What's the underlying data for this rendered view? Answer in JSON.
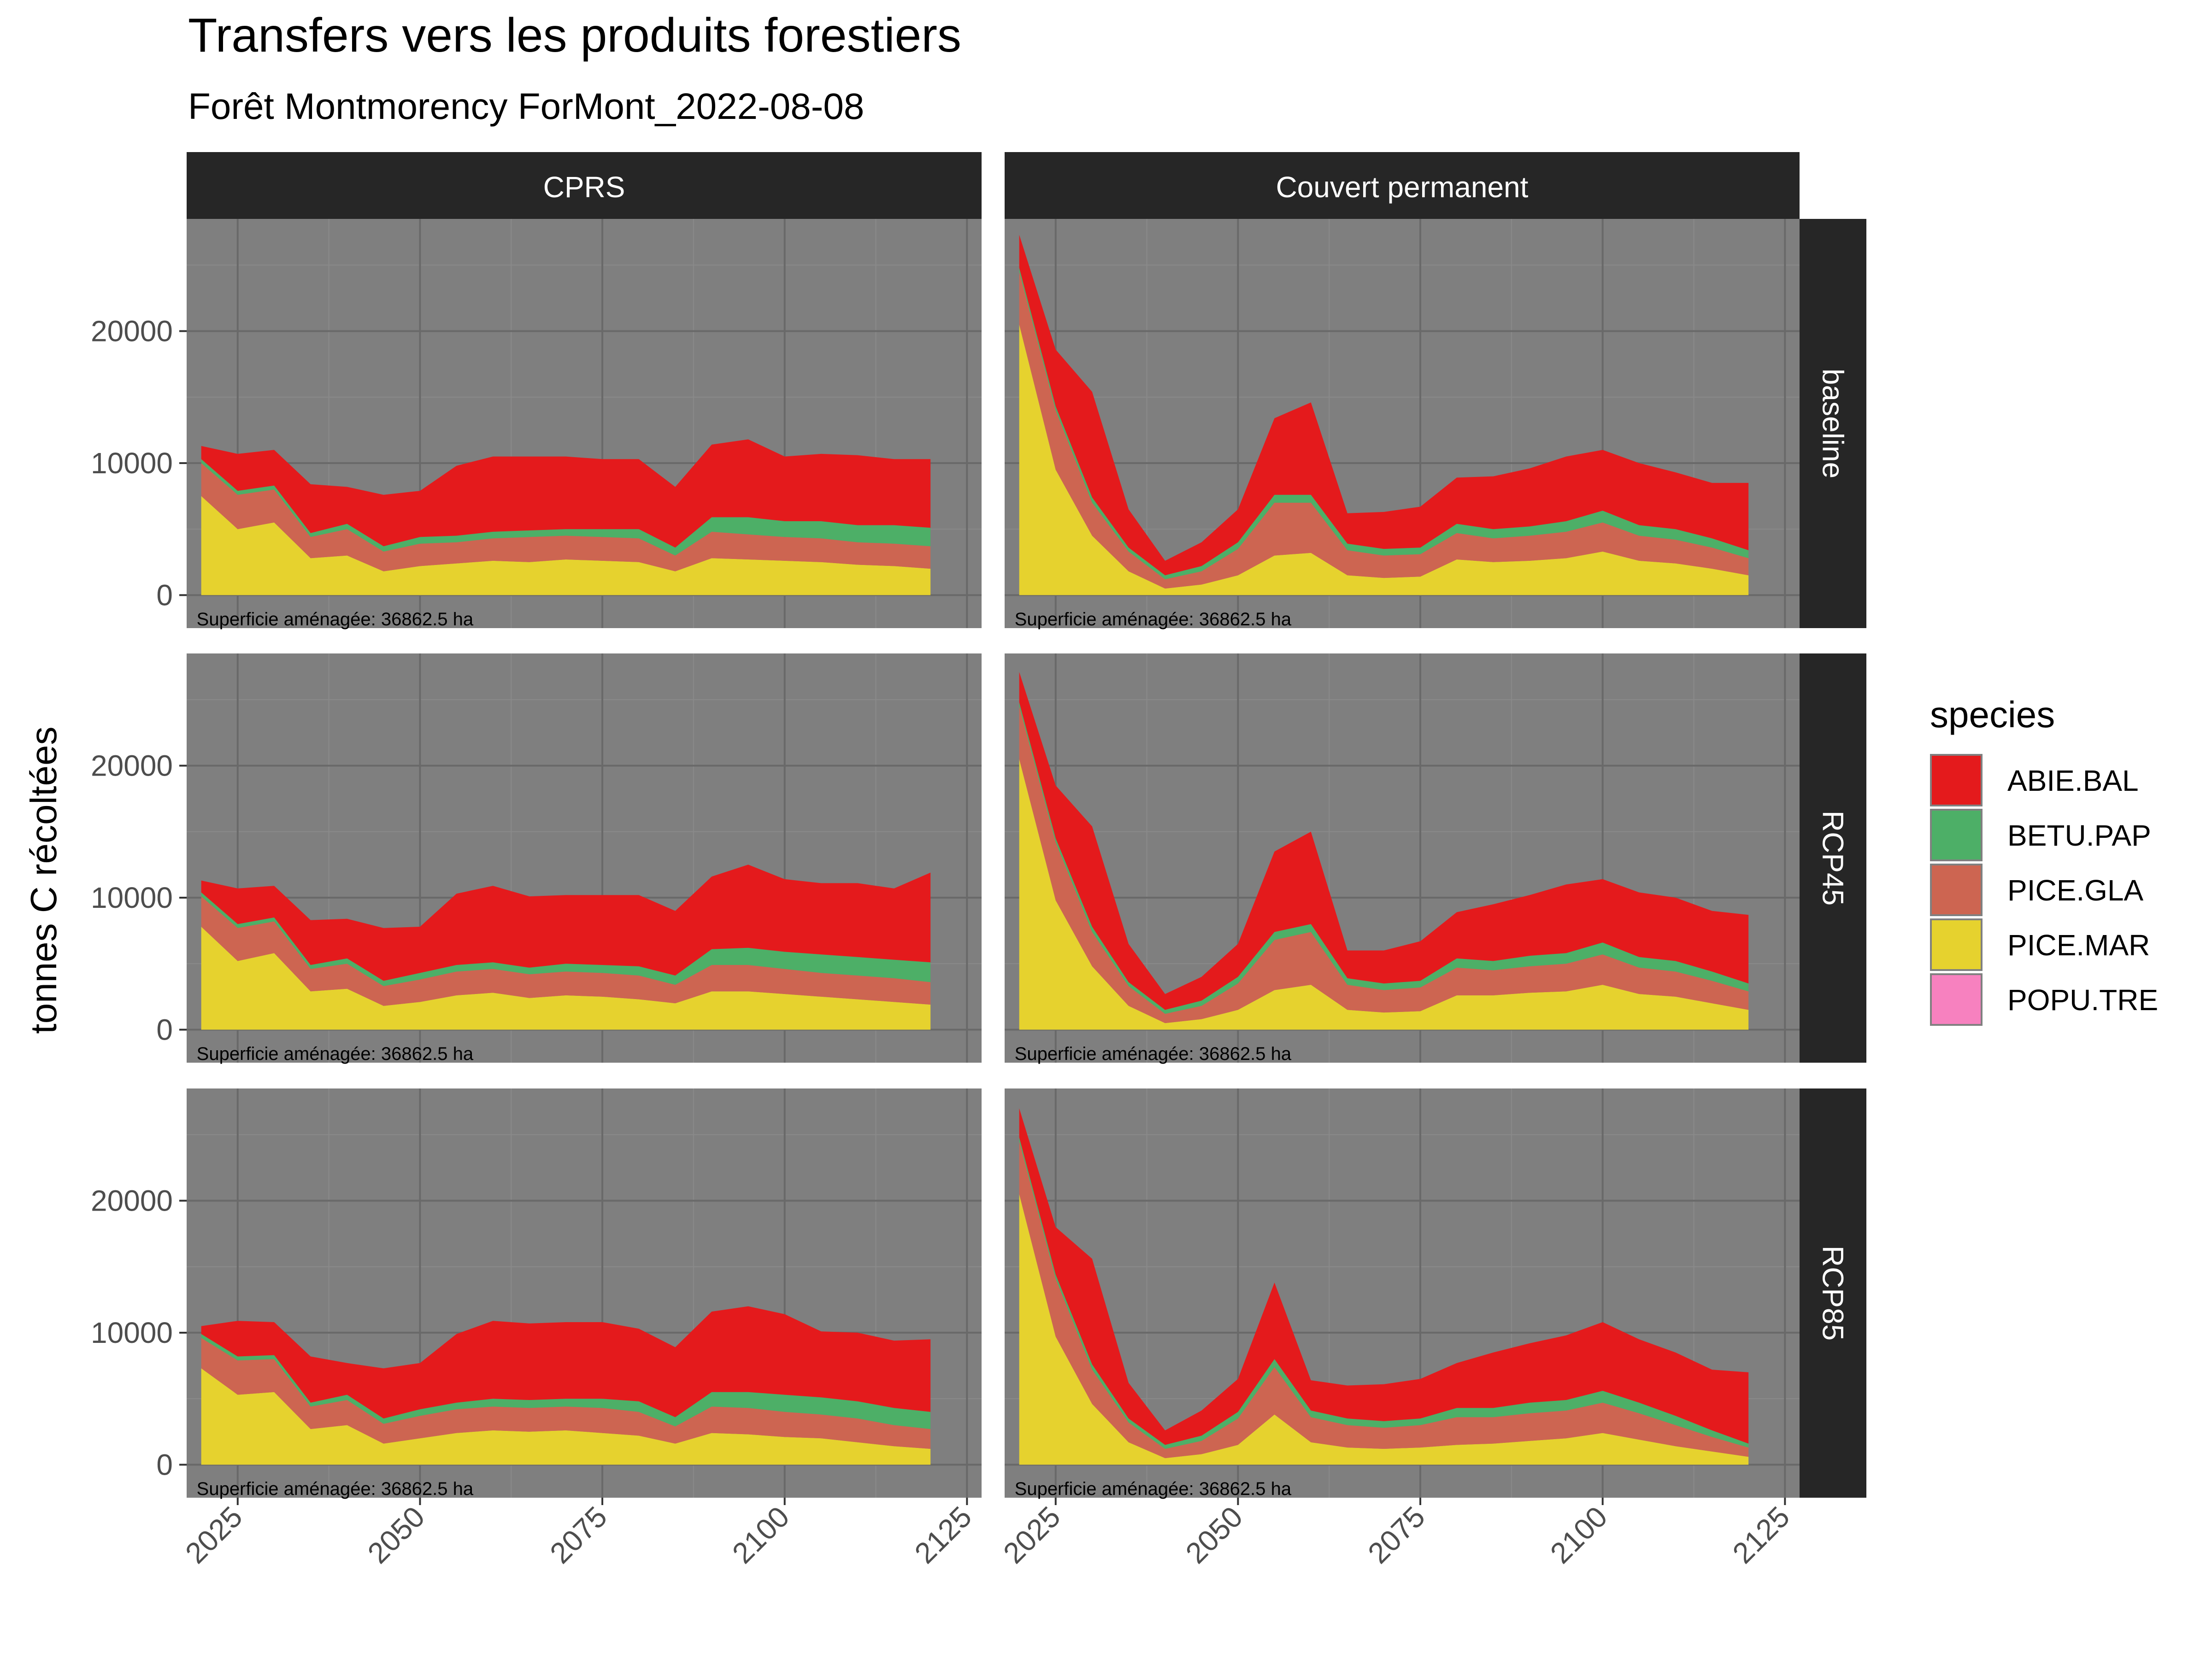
{
  "chart_data": {
    "type": "area",
    "stacked": true,
    "title": "Transfers vers les produits forestiers",
    "subtitle": "Forêt Montmorency ForMont_2022-08-08",
    "ylabel": "tonnes C récoltées",
    "xlabel": "",
    "xlim": [
      2018,
      2127
    ],
    "ylim": [
      -2500,
      28500
    ],
    "x_ticks": [
      2025,
      2050,
      2075,
      2100,
      2125
    ],
    "y_ticks": [
      0,
      10000,
      20000
    ],
    "grid": true,
    "legend": {
      "title": "species",
      "position": "right",
      "entries": [
        {
          "name": "ABIE.BAL",
          "color": "#e41a1c"
        },
        {
          "name": "BETU.PAP",
          "color": "#4daf67"
        },
        {
          "name": "PICE.GLA",
          "color": "#cd6551"
        },
        {
          "name": "PICE.MAR",
          "color": "#e6d22e"
        },
        {
          "name": "POPU.TRE",
          "color": "#f781bf"
        }
      ]
    },
    "columns": [
      "CPRS",
      "Couvert permanent"
    ],
    "rows": [
      "baseline",
      "RCP45",
      "RCP85"
    ],
    "annotation": "Superficie aménagée: 36862.5 ha",
    "panels": [
      {
        "column": "CPRS",
        "row": "baseline",
        "x": [
          2020,
          2025,
          2030,
          2035,
          2040,
          2045,
          2050,
          2055,
          2060,
          2065,
          2070,
          2075,
          2080,
          2085,
          2090,
          2095,
          2100,
          2105,
          2110,
          2115,
          2120
        ],
        "series": [
          {
            "name": "PICE.MAR",
            "values": [
              7500,
              5000,
              5500,
              2800,
              3000,
              1800,
              2200,
              2400,
              2600,
              2500,
              2700,
              2600,
              2500,
              1800,
              2800,
              2700,
              2600,
              2500,
              2300,
              2200,
              2000
            ]
          },
          {
            "name": "PICE.GLA",
            "values": [
              2500,
              2600,
              2500,
              1600,
              2000,
              1500,
              1700,
              1600,
              1700,
              1900,
              1800,
              1800,
              1800,
              1200,
              2000,
              1900,
              1800,
              1800,
              1700,
              1700,
              1700
            ]
          },
          {
            "name": "BETU.PAP",
            "values": [
              300,
              300,
              300,
              300,
              400,
              400,
              500,
              500,
              500,
              500,
              500,
              600,
              700,
              600,
              1100,
              1300,
              1200,
              1300,
              1300,
              1400,
              1400
            ]
          },
          {
            "name": "ABIE.BAL",
            "values": [
              1000,
              2800,
              2700,
              3700,
              2800,
              3900,
              3500,
              5300,
              5700,
              5600,
              5500,
              5300,
              5300,
              4600,
              5500,
              5900,
              4900,
              5100,
              5300,
              5000,
              5200
            ]
          },
          {
            "name": "POPU.TRE",
            "values": [
              0,
              0,
              0,
              0,
              0,
              0,
              0,
              0,
              0,
              0,
              0,
              0,
              0,
              0,
              0,
              0,
              0,
              0,
              0,
              0,
              0
            ]
          }
        ]
      },
      {
        "column": "Couvert permanent",
        "row": "baseline",
        "x": [
          2020,
          2025,
          2030,
          2035,
          2040,
          2045,
          2050,
          2055,
          2060,
          2065,
          2070,
          2075,
          2080,
          2085,
          2090,
          2095,
          2100,
          2105,
          2110,
          2115,
          2120
        ],
        "series": [
          {
            "name": "PICE.MAR",
            "values": [
              20500,
              9500,
              4500,
              1800,
              500,
              800,
              1500,
              3000,
              3200,
              1500,
              1300,
              1400,
              2700,
              2500,
              2600,
              2800,
              3300,
              2600,
              2400,
              2000,
              1500
            ]
          },
          {
            "name": "PICE.GLA",
            "values": [
              4000,
              4500,
              2500,
              1500,
              700,
              1000,
              2000,
              4000,
              3800,
              1900,
              1700,
              1700,
              2000,
              1800,
              1900,
              2000,
              2200,
              1900,
              1800,
              1600,
              1300
            ]
          },
          {
            "name": "BETU.PAP",
            "values": [
              300,
              300,
              400,
              300,
              300,
              400,
              500,
              600,
              600,
              500,
              500,
              500,
              700,
              700,
              700,
              800,
              900,
              800,
              800,
              700,
              600
            ]
          },
          {
            "name": "ABIE.BAL",
            "values": [
              2500,
              4300,
              8000,
              2900,
              1100,
              1800,
              2500,
              5800,
              7000,
              2300,
              2800,
              3100,
              3500,
              4000,
              4400,
              4900,
              4600,
              4700,
              4300,
              4200,
              5100
            ]
          },
          {
            "name": "POPU.TRE",
            "values": [
              0,
              0,
              0,
              0,
              0,
              0,
              0,
              0,
              0,
              0,
              0,
              0,
              0,
              0,
              0,
              0,
              0,
              0,
              0,
              0,
              0
            ]
          }
        ]
      },
      {
        "column": "CPRS",
        "row": "RCP45",
        "x": [
          2020,
          2025,
          2030,
          2035,
          2040,
          2045,
          2050,
          2055,
          2060,
          2065,
          2070,
          2075,
          2080,
          2085,
          2090,
          2095,
          2100,
          2105,
          2110,
          2115,
          2120
        ],
        "series": [
          {
            "name": "PICE.MAR",
            "values": [
              7800,
              5200,
              5800,
              2900,
              3100,
              1800,
              2100,
              2600,
              2800,
              2400,
              2600,
              2500,
              2300,
              2000,
              2900,
              2900,
              2700,
              2500,
              2300,
              2100,
              1900
            ]
          },
          {
            "name": "PICE.GLA",
            "values": [
              2300,
              2500,
              2400,
              1700,
              1900,
              1500,
              1700,
              1800,
              1800,
              1800,
              1800,
              1800,
              1800,
              1400,
              2000,
              2000,
              1900,
              1800,
              1800,
              1800,
              1700
            ]
          },
          {
            "name": "BETU.PAP",
            "values": [
              300,
              300,
              300,
              300,
              400,
              400,
              500,
              500,
              500,
              500,
              600,
              600,
              700,
              700,
              1200,
              1300,
              1300,
              1400,
              1400,
              1400,
              1500
            ]
          },
          {
            "name": "ABIE.BAL",
            "values": [
              900,
              2700,
              2400,
              3400,
              3000,
              4000,
              3500,
              5400,
              5800,
              5400,
              5200,
              5300,
              5400,
              4900,
              5500,
              6300,
              5500,
              5400,
              5600,
              5400,
              6800
            ]
          },
          {
            "name": "POPU.TRE",
            "values": [
              0,
              0,
              0,
              0,
              0,
              0,
              0,
              0,
              0,
              0,
              0,
              0,
              0,
              0,
              0,
              0,
              0,
              0,
              0,
              0,
              0
            ]
          }
        ]
      },
      {
        "column": "Couvert permanent",
        "row": "RCP45",
        "x": [
          2020,
          2025,
          2030,
          2035,
          2040,
          2045,
          2050,
          2055,
          2060,
          2065,
          2070,
          2075,
          2080,
          2085,
          2090,
          2095,
          2100,
          2105,
          2110,
          2115,
          2120
        ],
        "series": [
          {
            "name": "PICE.MAR",
            "values": [
              20500,
              9800,
              4800,
              1800,
              500,
              800,
              1500,
              3000,
              3400,
              1500,
              1300,
              1400,
              2600,
              2600,
              2800,
              2900,
              3400,
              2700,
              2500,
              2000,
              1500
            ]
          },
          {
            "name": "PICE.GLA",
            "values": [
              4000,
              4400,
              2600,
              1500,
              700,
              1000,
              2000,
              3800,
              4000,
              1900,
              1700,
              1800,
              2100,
              1900,
              2000,
              2100,
              2300,
              2000,
              1900,
              1700,
              1400
            ]
          },
          {
            "name": "BETU.PAP",
            "values": [
              300,
              300,
              400,
              300,
              300,
              400,
              500,
              600,
              600,
              500,
              500,
              500,
              700,
              700,
              800,
              800,
              900,
              800,
              800,
              700,
              600
            ]
          },
          {
            "name": "ABIE.BAL",
            "values": [
              2300,
              4000,
              7600,
              2900,
              1200,
              1800,
              2500,
              6100,
              7000,
              2100,
              2500,
              3000,
              3500,
              4300,
              4600,
              5200,
              4800,
              4900,
              4800,
              4600,
              5200
            ]
          },
          {
            "name": "POPU.TRE",
            "values": [
              0,
              0,
              0,
              0,
              0,
              0,
              0,
              0,
              0,
              0,
              0,
              0,
              0,
              0,
              0,
              0,
              0,
              0,
              0,
              0,
              0
            ]
          }
        ]
      },
      {
        "column": "CPRS",
        "row": "RCP85",
        "x": [
          2020,
          2025,
          2030,
          2035,
          2040,
          2045,
          2050,
          2055,
          2060,
          2065,
          2070,
          2075,
          2080,
          2085,
          2090,
          2095,
          2100,
          2105,
          2110,
          2115,
          2120
        ],
        "series": [
          {
            "name": "PICE.MAR",
            "values": [
              7300,
              5300,
              5500,
              2700,
              3000,
              1600,
              2000,
              2400,
              2600,
              2500,
              2600,
              2400,
              2200,
              1600,
              2400,
              2300,
              2100,
              2000,
              1700,
              1400,
              1200
            ]
          },
          {
            "name": "PICE.GLA",
            "values": [
              2300,
              2600,
              2500,
              1700,
              1900,
              1500,
              1700,
              1800,
              1800,
              1800,
              1800,
              1900,
              1800,
              1300,
              2000,
              2000,
              1900,
              1800,
              1800,
              1600,
              1500
            ]
          },
          {
            "name": "BETU.PAP",
            "values": [
              300,
              300,
              300,
              300,
              400,
              400,
              500,
              500,
              600,
              600,
              600,
              700,
              800,
              700,
              1100,
              1200,
              1300,
              1300,
              1300,
              1300,
              1300
            ]
          },
          {
            "name": "ABIE.BAL",
            "values": [
              600,
              2700,
              2500,
              3500,
              2400,
              3800,
              3500,
              5200,
              5900,
              5800,
              5800,
              5800,
              5500,
              5300,
              6100,
              6500,
              6100,
              5000,
              5200,
              5100,
              5500
            ]
          },
          {
            "name": "POPU.TRE",
            "values": [
              0,
              0,
              0,
              0,
              0,
              0,
              0,
              0,
              0,
              0,
              0,
              0,
              0,
              0,
              0,
              0,
              0,
              0,
              0,
              0,
              0
            ]
          }
        ]
      },
      {
        "column": "Couvert permanent",
        "row": "RCP85",
        "x": [
          2020,
          2025,
          2030,
          2035,
          2040,
          2045,
          2050,
          2055,
          2060,
          2065,
          2070,
          2075,
          2080,
          2085,
          2090,
          2095,
          2100,
          2105,
          2110,
          2115,
          2120
        ],
        "series": [
          {
            "name": "PICE.MAR",
            "values": [
              20500,
              9700,
              4600,
              1700,
              500,
              800,
              1500,
              3800,
              1700,
              1300,
              1200,
              1300,
              1500,
              1600,
              1800,
              2000,
              2400,
              1900,
              1400,
              1000,
              600
            ]
          },
          {
            "name": "PICE.GLA",
            "values": [
              4000,
              4400,
              2600,
              1500,
              700,
              1000,
              2000,
              3600,
              1900,
              1700,
              1600,
              1700,
              2100,
              2000,
              2100,
              2100,
              2300,
              2000,
              1600,
              1100,
              700
            ]
          },
          {
            "name": "BETU.PAP",
            "values": [
              300,
              300,
              400,
              300,
              300,
              400,
              500,
              600,
              500,
              500,
              500,
              500,
              700,
              700,
              800,
              800,
              900,
              800,
              700,
              500,
              300
            ]
          },
          {
            "name": "ABIE.BAL",
            "values": [
              2200,
              3600,
              8000,
              2700,
              1100,
              1900,
              2500,
              5800,
              2300,
              2500,
              2800,
              3000,
              3400,
              4200,
              4500,
              4900,
              5200,
              4800,
              4800,
              4600,
              5400
            ]
          },
          {
            "name": "POPU.TRE",
            "values": [
              0,
              0,
              0,
              0,
              0,
              0,
              0,
              0,
              0,
              0,
              0,
              0,
              0,
              0,
              0,
              0,
              0,
              0,
              0,
              0,
              0
            ]
          }
        ]
      }
    ]
  }
}
